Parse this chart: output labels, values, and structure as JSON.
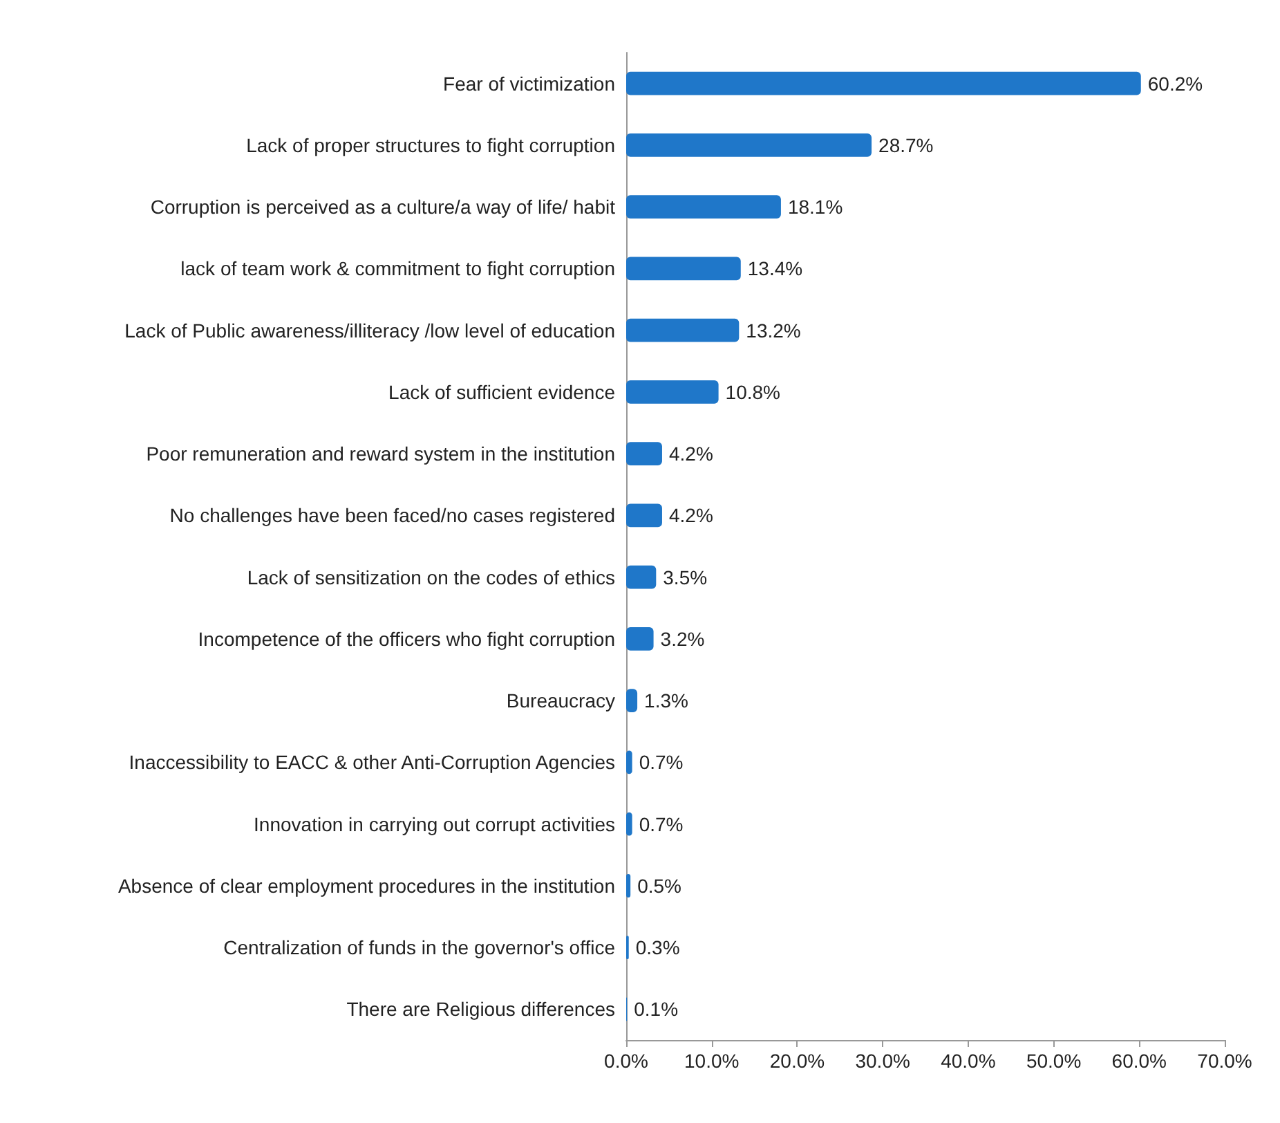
{
  "chart_data": {
    "type": "bar",
    "orientation": "horizontal",
    "categories": [
      "Fear of victimization",
      "Lack of proper structures to fight corruption",
      "Corruption is perceived as a culture/a way of life/ habit",
      "lack of team work & commitment to fight corruption",
      "Lack of Public awareness/illiteracy /low level of education",
      "Lack of sufficient evidence",
      "Poor remuneration and reward system in the institution",
      "No challenges have been faced/no cases registered",
      "Lack of sensitization on the codes of ethics",
      "Incompetence of the officers who fight corruption",
      "Bureaucracy",
      "Inaccessibility to EACC & other Anti-Corruption Agencies",
      "Innovation in carrying out corrupt activities",
      "Absence of clear employment procedures in the institution",
      "Centralization of funds in the governor's office",
      "There are Religious differences"
    ],
    "values": [
      60.2,
      28.7,
      18.1,
      13.4,
      13.2,
      10.8,
      4.2,
      4.2,
      3.5,
      3.2,
      1.3,
      0.7,
      0.7,
      0.5,
      0.3,
      0.1
    ],
    "value_labels": [
      "60.2%",
      "28.7%",
      "18.1%",
      "13.4%",
      "13.2%",
      "10.8%",
      "4.2%",
      "4.2%",
      "3.5%",
      "3.2%",
      "1.3%",
      "0.7%",
      "0.7%",
      "0.5%",
      "0.3%",
      "0.1%"
    ],
    "color": "#1f77c9",
    "xlim": [
      0,
      70
    ],
    "xticks": [
      {
        "value": 0,
        "label": "0.0%"
      },
      {
        "value": 10,
        "label": "10.0%"
      },
      {
        "value": 20,
        "label": "20.0%"
      },
      {
        "value": 30,
        "label": "30.0%"
      },
      {
        "value": 40,
        "label": "40.0%"
      },
      {
        "value": 50,
        "label": "50.0%"
      },
      {
        "value": 60,
        "label": "60.0%"
      },
      {
        "value": 70,
        "label": "70.0%"
      }
    ],
    "grid": false
  }
}
